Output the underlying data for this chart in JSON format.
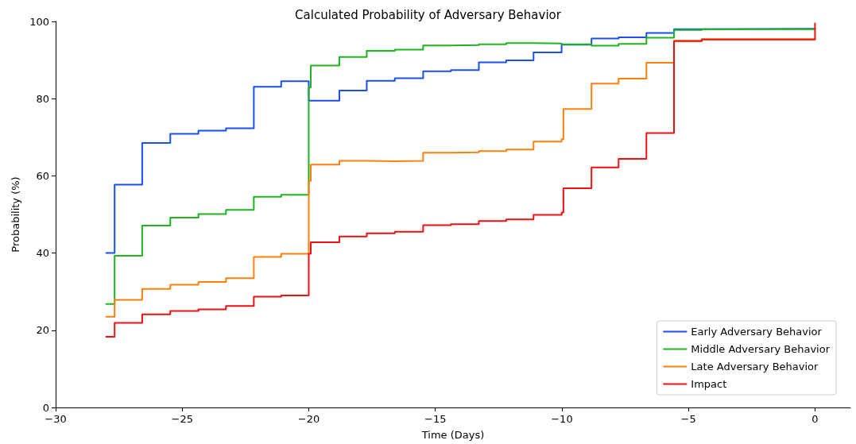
{
  "chart_data": {
    "type": "step",
    "title": "Calculated Probability of Adversary Behavior",
    "xlabel": "Time (Days)",
    "ylabel": "Probability (%)",
    "xlim": [
      -30,
      1.4
    ],
    "xticks": [
      {
        "value": -30,
        "label": "−30"
      },
      {
        "value": -25,
        "label": "−25"
      },
      {
        "value": -20,
        "label": "−20"
      },
      {
        "value": -15,
        "label": "−15"
      },
      {
        "value": -10,
        "label": "−10"
      },
      {
        "value": -5,
        "label": "−5"
      },
      0
    ],
    "ylim": [
      0,
      100
    ],
    "yticks": [
      0,
      20,
      40,
      60,
      80,
      100
    ],
    "grid": false,
    "legend": "bottom right",
    "marker": "none",
    "line_style": "solid",
    "series": [
      {
        "name": "Early Adversary Behavior",
        "color": "#1a4ff0",
        "x": [
          -28,
          -27.67,
          -26.58,
          -25.47,
          -24.36,
          -23.27,
          -22.17,
          -21.09,
          -20,
          -18.79,
          -17.71,
          -16.6,
          -15.48,
          -14.38,
          -13.28,
          -12.2,
          -11.12,
          -10.01,
          -8.83,
          -7.76,
          -6.66,
          -5.57,
          -4.47,
          0
        ],
        "values": [
          40,
          57.7,
          68.5,
          70.9,
          71.7,
          72.3,
          83.1,
          84.5,
          79.5,
          82.1,
          84.6,
          85.3,
          87.1,
          87.4,
          89.4,
          89.9,
          92,
          94,
          95.6,
          95.9,
          97,
          98,
          98.1,
          98.1
        ]
      },
      {
        "name": "Middle Adversary Behavior",
        "color": "#1fb31f",
        "x": [
          -28,
          -27.67,
          -26.58,
          -25.47,
          -24.36,
          -23.27,
          -22.17,
          -21.09,
          -20,
          -19.92,
          -18.79,
          -17.71,
          -16.6,
          -15.48,
          -14.38,
          -13.28,
          -12.2,
          -11.12,
          -10.01,
          -8.83,
          -7.76,
          -6.66,
          -5.57,
          -4.47,
          0
        ],
        "values": [
          26.8,
          39.3,
          47.1,
          49.2,
          50.1,
          51.2,
          54.6,
          55.1,
          82.9,
          88.6,
          90.8,
          92.4,
          92.7,
          93.8,
          93.9,
          94.1,
          94.4,
          94.3,
          94.1,
          93.7,
          94.2,
          95.8,
          97.8,
          98,
          98
        ]
      },
      {
        "name": "Late Adversary Behavior",
        "color": "#ff7f0e",
        "x": [
          -28,
          -27.67,
          -26.58,
          -25.47,
          -24.36,
          -23.27,
          -22.17,
          -21.09,
          -20,
          -19.92,
          -18.79,
          -17.71,
          -16.6,
          -15.48,
          -14.38,
          -13.28,
          -12.2,
          -11.12,
          -10.01,
          -9.94,
          -8.83,
          -7.76,
          -6.66,
          -5.57,
          -4.47,
          0
        ],
        "values": [
          23.5,
          27.9,
          30.7,
          31.8,
          32.5,
          33.5,
          39,
          39.8,
          58.7,
          62.9,
          63.9,
          63.8,
          63.9,
          66,
          66.1,
          66.4,
          66.8,
          68.9,
          69.5,
          77.3,
          83.9,
          85.2,
          89.3,
          95,
          95.4,
          95.4
        ]
      },
      {
        "name": "Impact",
        "color": "#ee1111",
        "x": [
          -28,
          -27.67,
          -26.58,
          -25.47,
          -24.36,
          -23.27,
          -22.17,
          -21.09,
          -20,
          -19.92,
          -18.79,
          -17.71,
          -16.6,
          -15.48,
          -14.38,
          -13.28,
          -12.2,
          -11.12,
          -10.01,
          -9.94,
          -8.83,
          -7.76,
          -6.66,
          -5.57,
          -4.47,
          0,
          0
        ],
        "values": [
          18.3,
          21.9,
          24.1,
          25,
          25.4,
          26.3,
          28.7,
          29,
          39.8,
          42.8,
          44.3,
          45.1,
          45.5,
          47.2,
          47.5,
          48.3,
          48.7,
          49.9,
          50.5,
          56.8,
          62.2,
          64.4,
          71.1,
          94.9,
          95.3,
          95.3,
          99.5
        ]
      }
    ]
  }
}
